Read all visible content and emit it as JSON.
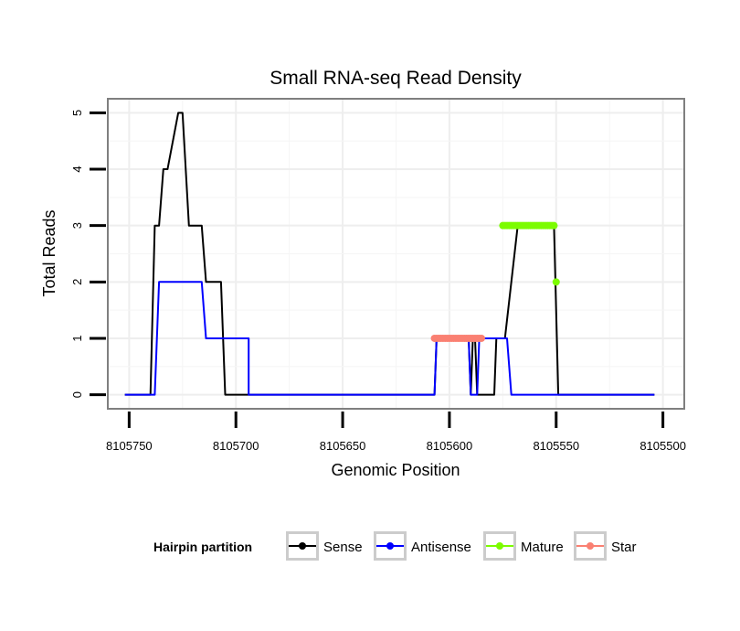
{
  "chart_data": {
    "type": "line",
    "title": "Small RNA-seq Read Density",
    "xlabel": "Genomic Position",
    "ylabel": "Total Reads",
    "xlim": [
      8105760,
      8105490
    ],
    "ylim": [
      -0.25,
      5.25
    ],
    "x_reversed": true,
    "xticks": [
      8105750,
      8105700,
      8105650,
      8105600,
      8105550,
      8105500
    ],
    "xtick_labels": [
      "8105750",
      "8105700",
      "8105650",
      "8105600",
      "8105550",
      "8105500"
    ],
    "yticks": [
      0,
      1,
      2,
      3,
      4,
      5
    ],
    "ytick_labels": [
      "0",
      "1",
      "2",
      "3",
      "4",
      "5"
    ],
    "grid": true,
    "legend": {
      "title": "Hairpin partition",
      "position": "bottom",
      "entries": [
        {
          "label": "Sense",
          "color": "#000000"
        },
        {
          "label": "Antisense",
          "color": "#0000ff"
        },
        {
          "label": "Mature",
          "color": "#7cfc00"
        },
        {
          "label": "Star",
          "color": "#fa8072"
        }
      ]
    },
    "series": [
      {
        "name": "Sense",
        "color": "#000000",
        "style": "line",
        "x": [
          8105752,
          8105740,
          8105738,
          8105736,
          8105734,
          8105732,
          8105727,
          8105725,
          8105722,
          8105716,
          8105714,
          8105707,
          8105705,
          8105703,
          8105701,
          8105699,
          8105607,
          8105606,
          8105591,
          8105590,
          8105590,
          8105589,
          8105588,
          8105587,
          8105579,
          8105578,
          8105576,
          8105574,
          8105568,
          8105551,
          8105549,
          8105504
        ],
        "y": [
          0,
          0,
          3,
          3,
          4,
          4,
          5,
          5,
          3,
          3,
          2,
          2,
          0,
          0,
          0,
          0,
          0,
          1,
          1,
          0,
          0,
          1,
          1,
          0,
          0,
          1,
          1,
          1,
          3,
          3,
          0,
          0
        ]
      },
      {
        "name": "Antisense",
        "color": "#0000ff",
        "style": "line",
        "x": [
          8105752,
          8105738,
          8105736,
          8105716,
          8105714,
          8105694,
          8105694,
          8105607,
          8105606,
          8105591,
          8105590,
          8105587,
          8105586,
          8105573,
          8105571,
          8105504
        ],
        "y": [
          0,
          0,
          2,
          2,
          1,
          1,
          0,
          0,
          1,
          1,
          0,
          0,
          1,
          1,
          0,
          0
        ]
      },
      {
        "name": "Mature",
        "color": "#7cfc00",
        "style": "points",
        "x": [
          8105575,
          8105574,
          8105573,
          8105572,
          8105571,
          8105570,
          8105569,
          8105568,
          8105567,
          8105566,
          8105565,
          8105564,
          8105563,
          8105562,
          8105561,
          8105560,
          8105559,
          8105558,
          8105557,
          8105556,
          8105555,
          8105554,
          8105553,
          8105552,
          8105551,
          8105550
        ],
        "y": [
          3,
          3,
          3,
          3,
          3,
          3,
          3,
          3,
          3,
          3,
          3,
          3,
          3,
          3,
          3,
          3,
          3,
          3,
          3,
          3,
          3,
          3,
          3,
          3,
          3,
          2
        ]
      },
      {
        "name": "Star",
        "color": "#fa8072",
        "style": "points",
        "x": [
          8105607,
          8105606,
          8105605,
          8105604,
          8105603,
          8105602,
          8105601,
          8105600,
          8105599,
          8105598,
          8105597,
          8105596,
          8105595,
          8105594,
          8105593,
          8105592,
          8105591,
          8105590,
          8105589,
          8105588,
          8105587,
          8105586,
          8105585
        ],
        "y": [
          1,
          1,
          1,
          1,
          1,
          1,
          1,
          1,
          1,
          1,
          1,
          1,
          1,
          1,
          1,
          1,
          1,
          1,
          1,
          1,
          1,
          1,
          1
        ]
      }
    ]
  }
}
